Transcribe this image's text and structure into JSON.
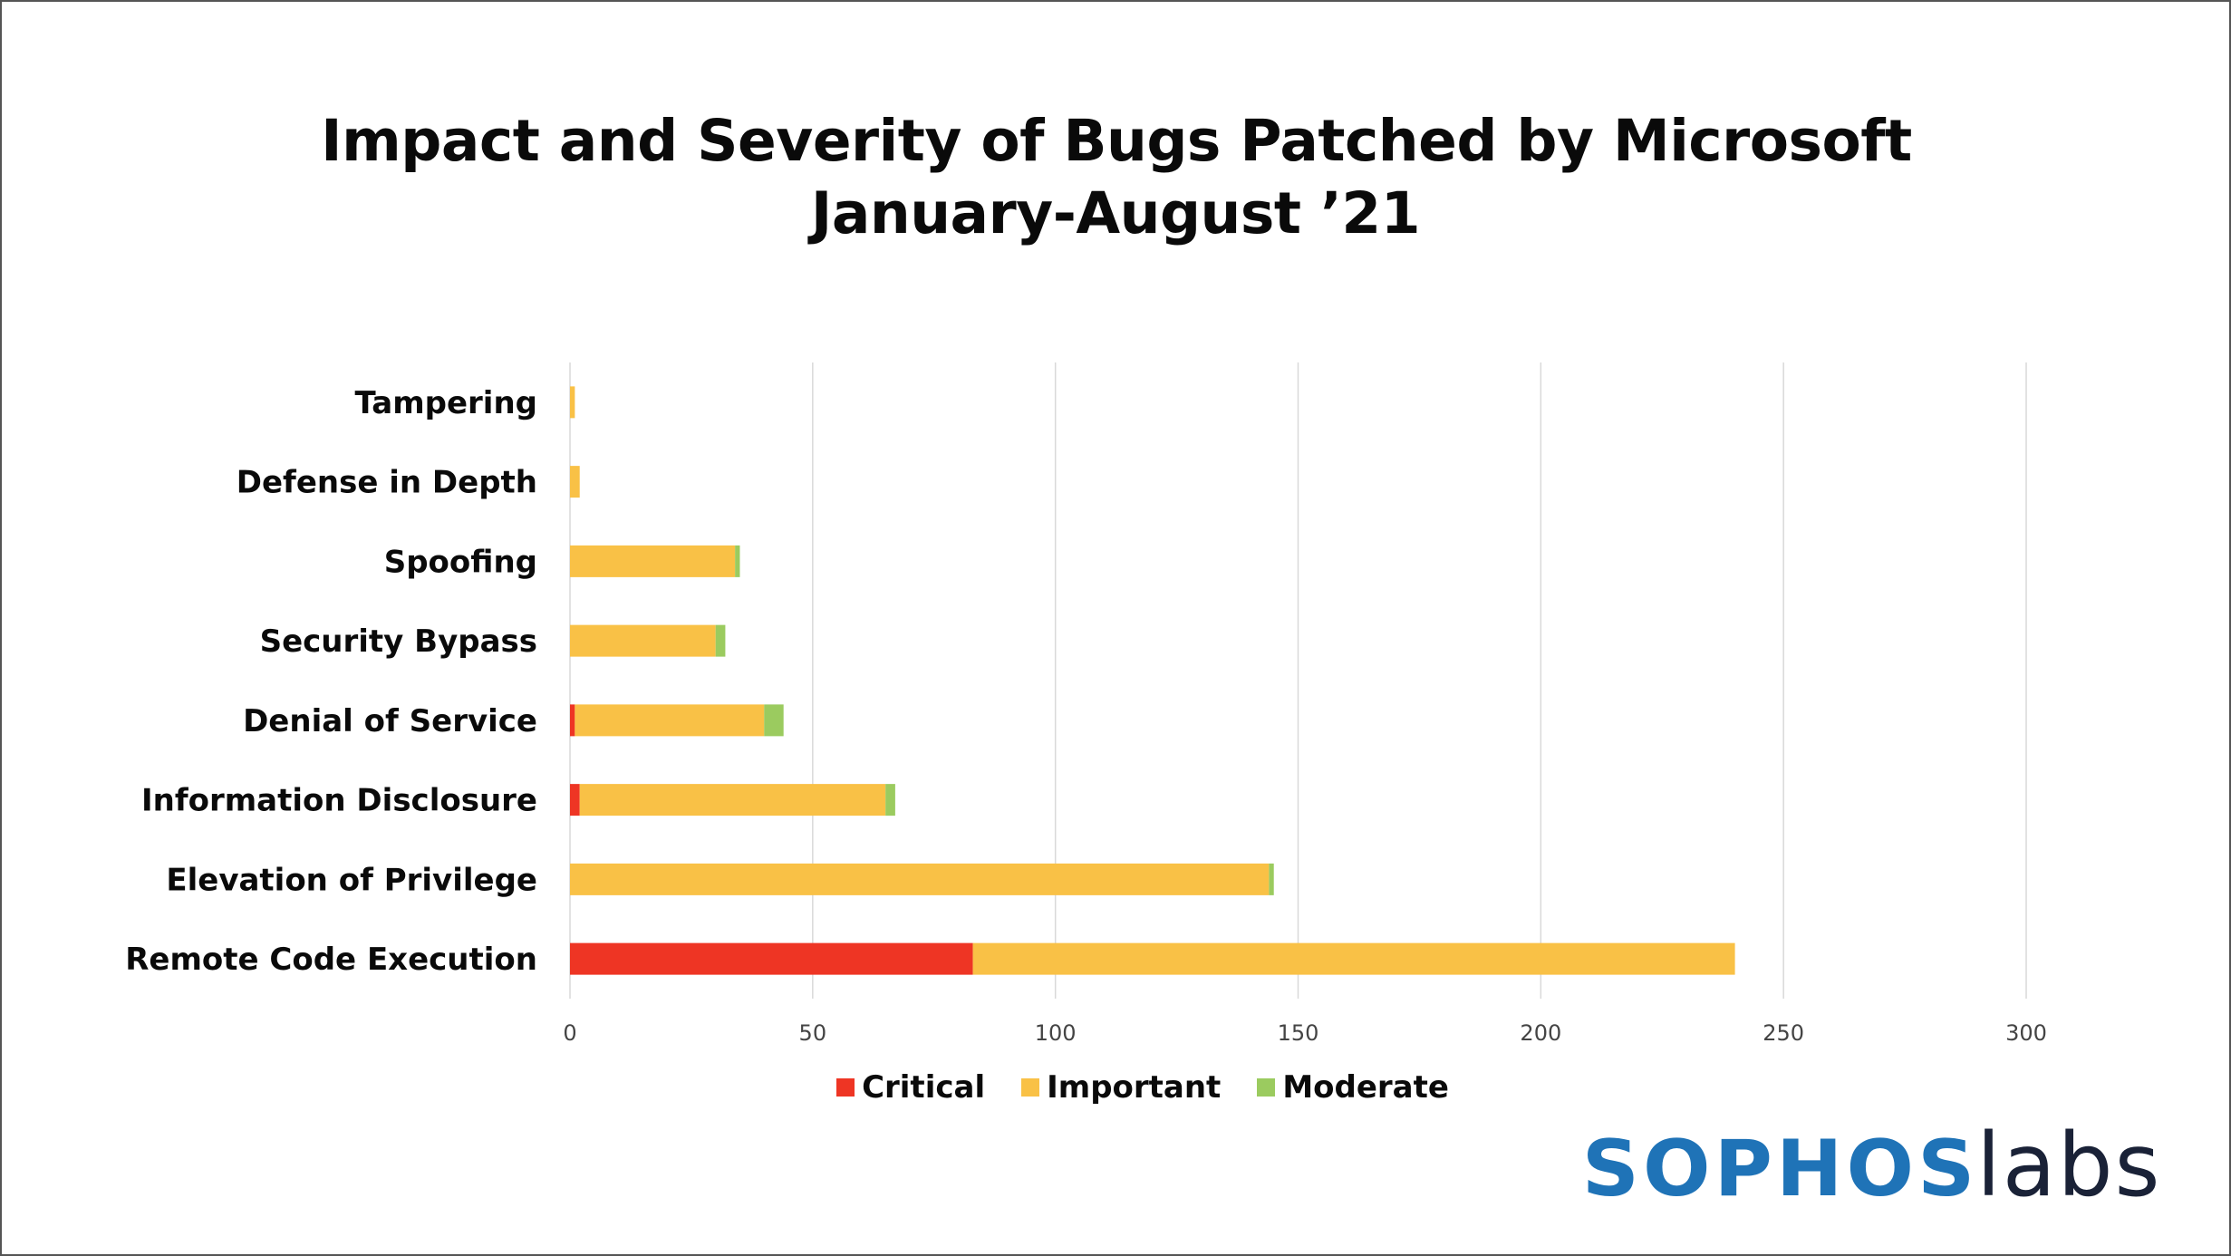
{
  "chart_data": {
    "type": "bar",
    "orientation": "horizontal",
    "stacked": true,
    "title": "Impact and Severity of Bugs Patched by Microsoft",
    "subtitle": "January-August ’21",
    "categories": [
      "Tampering",
      "Defense in Depth",
      "Spoofing",
      "Security Bypass",
      "Denial of Service",
      "Information Disclosure",
      "Elevation of Privilege",
      "Remote Code Execution"
    ],
    "series": [
      {
        "name": "Critical",
        "color": "#ee3524",
        "values": [
          0,
          0,
          0,
          0,
          1,
          2,
          0,
          83
        ]
      },
      {
        "name": "Important",
        "color": "#f9c146",
        "values": [
          1,
          2,
          34,
          30,
          39,
          63,
          144,
          157
        ]
      },
      {
        "name": "Moderate",
        "color": "#9bcb5f",
        "values": [
          0,
          0,
          1,
          2,
          4,
          2,
          1,
          0
        ]
      }
    ],
    "xlim": [
      0,
      300
    ],
    "xticks": [
      "0",
      "50",
      "100",
      "150",
      "200",
      "250",
      "300"
    ],
    "xlabel": "",
    "ylabel": "",
    "grid": true,
    "legend_position": "bottom"
  },
  "logo": {
    "part1": "SOPHOS",
    "part2": "labs"
  }
}
